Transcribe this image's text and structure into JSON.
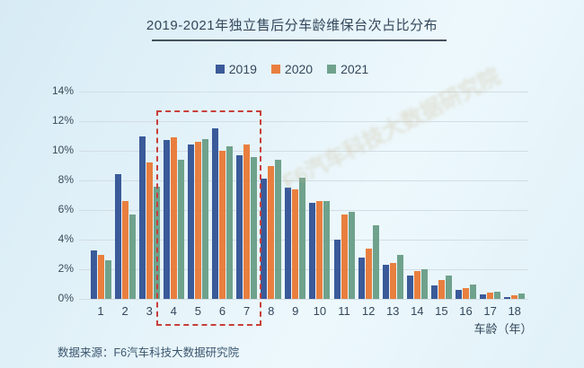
{
  "title": "2019-2021年独立售后分车龄维保台次占比分布",
  "source": "数据来源：F6汽车科技大数据研究院",
  "watermark": "F6汽车科技大数据研究院",
  "colors": {
    "series_2019": "#3a5a99",
    "series_2020": "#e97f3f",
    "series_2021": "#6fa28c",
    "highlight_box": "#c8403a",
    "gridline": "#d2dde4",
    "text": "#33475b",
    "background_top": "#d7ebf5",
    "background_bottom": "#e0f1f8"
  },
  "chart_data": {
    "type": "bar",
    "title": "2019-2021年独立售后分车龄维保台次占比分布",
    "categories": [
      "1",
      "2",
      "3",
      "4",
      "5",
      "6",
      "7",
      "8",
      "9",
      "10",
      "11",
      "12",
      "13",
      "14",
      "15",
      "16",
      "17",
      "18"
    ],
    "series": [
      {
        "name": "2019",
        "color": "#3a5a99",
        "values": [
          3.3,
          8.4,
          11.0,
          10.7,
          10.4,
          11.5,
          9.7,
          8.1,
          7.5,
          6.5,
          4.0,
          2.8,
          2.3,
          1.6,
          0.9,
          0.6,
          0.3,
          0.15
        ]
      },
      {
        "name": "2020",
        "color": "#e97f3f",
        "values": [
          3.0,
          6.6,
          9.2,
          10.9,
          10.6,
          10.0,
          10.4,
          9.0,
          7.4,
          6.6,
          5.7,
          3.4,
          2.4,
          1.9,
          1.3,
          0.7,
          0.4,
          0.25
        ]
      },
      {
        "name": "2021",
        "color": "#6fa28c",
        "values": [
          2.6,
          5.7,
          7.6,
          9.4,
          10.8,
          10.3,
          9.6,
          9.4,
          8.2,
          6.6,
          5.9,
          5.0,
          3.0,
          2.0,
          1.6,
          1.0,
          0.5,
          0.35
        ]
      }
    ],
    "xlabel": "车龄（年）",
    "ylabel": "",
    "ylim": [
      0,
      14
    ],
    "y_tick_step": 2,
    "y_ticks": [
      "0%",
      "2%",
      "4%",
      "6%",
      "8%",
      "10%",
      "12%",
      "14%"
    ],
    "grid": true,
    "legend_position": "top-center",
    "highlight_box": {
      "from_category": "4",
      "to_category": "7"
    }
  }
}
